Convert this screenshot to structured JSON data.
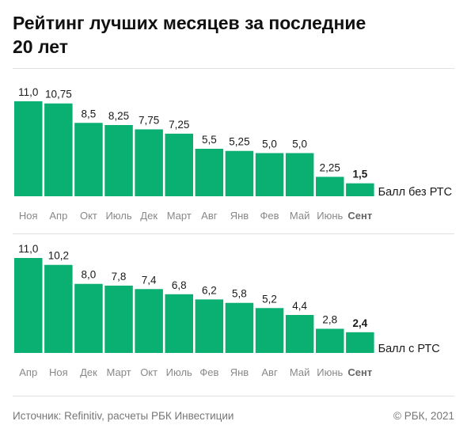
{
  "title": "Рейтинг лучших месяцев за последние 20 лет",
  "colors": {
    "bar": "#0ab072",
    "text": "#1a1a1a",
    "tick": "#888888",
    "rule": "#e0e0e0"
  },
  "chart_data": [
    {
      "type": "bar",
      "categories": [
        "Ноя",
        "Апр",
        "Окт",
        "Июль",
        "Дек",
        "Март",
        "Авг",
        "Янв",
        "Фев",
        "Май",
        "Июнь",
        "Сент"
      ],
      "values": [
        11.0,
        10.75,
        8.5,
        8.25,
        7.75,
        7.25,
        5.5,
        5.25,
        5.0,
        5.0,
        2.25,
        1.5
      ],
      "value_labels": [
        "11,0",
        "10,75",
        "8,5",
        "8,25",
        "7,75",
        "7,25",
        "5,5",
        "5,25",
        "5,0",
        "5,0",
        "2,25",
        "1,5"
      ],
      "highlight_index": 11,
      "series_label": "Балл без РТС",
      "ylim": [
        0,
        11
      ]
    },
    {
      "type": "bar",
      "categories": [
        "Апр",
        "Ноя",
        "Дек",
        "Март",
        "Окт",
        "Июль",
        "Фев",
        "Янв",
        "Авг",
        "Май",
        "Июнь",
        "Сент"
      ],
      "values": [
        11.0,
        10.2,
        8.0,
        7.8,
        7.4,
        6.8,
        6.2,
        5.8,
        5.2,
        4.4,
        2.8,
        2.4
      ],
      "value_labels": [
        "11,0",
        "10,2",
        "8,0",
        "7,8",
        "7,4",
        "6,8",
        "6,2",
        "5,8",
        "5,2",
        "4,4",
        "2,8",
        "2,4"
      ],
      "highlight_index": 11,
      "series_label": "Балл с РТС",
      "ylim": [
        0,
        11
      ]
    }
  ],
  "footer": {
    "source": "Источник:  Refinitiv, расчеты РБК Инвестиции",
    "copyright": "©  РБК, 2021"
  }
}
